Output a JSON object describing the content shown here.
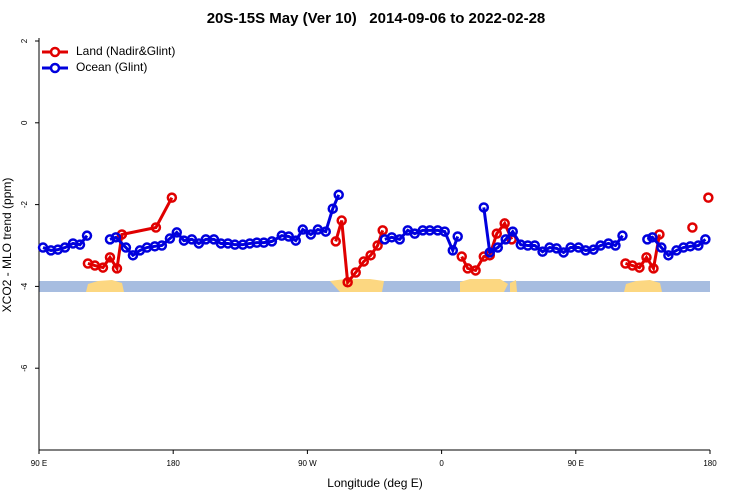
{
  "chart_data": {
    "type": "line",
    "title": "20S-15S May (Ver 10)   2014-09-06 to 2022-02-28",
    "xlabel": "Longitude (deg E)",
    "ylabel": "XCO2 - MLO trend (ppm)",
    "xlim": [
      90,
      540
    ],
    "xticks": [
      {
        "value": 90,
        "label": "90 E"
      },
      {
        "value": 180,
        "label": "180"
      },
      {
        "value": 270,
        "label": "90 W"
      },
      {
        "value": 360,
        "label": "0"
      },
      {
        "value": 450,
        "label": "90 E"
      },
      {
        "value": 540,
        "label": "180"
      }
    ],
    "ylim": [
      -8,
      2
    ],
    "yticks": [
      -6,
      -4,
      -2,
      0,
      2
    ],
    "legend": "top-left",
    "series": [
      {
        "name": "Land (Nadir&Glint)",
        "color": "#e00000",
        "x": [
          122.8,
          127.5,
          132.9,
          137.6,
          142.3,
          145.6,
          168.4,
          179.1,
          null,
          289.0,
          293.0,
          297.0,
          302.4,
          307.8,
          312.4,
          317.1,
          320.5,
          null,
          373.5,
          377.5,
          382.8,
          388.3,
          392.3,
          397.0,
          402.3,
          407.0,
          null,
          483.3,
          488.0,
          492.7,
          497.4,
          502.1,
          506.1,
          null,
          528.2,
          null,
          538.9
        ],
        "values": [
          -3.44,
          -3.49,
          -3.54,
          -3.29,
          -3.56,
          -2.73,
          -2.56,
          -1.83,
          null,
          -2.9,
          -2.39,
          -3.9,
          -3.66,
          -3.39,
          -3.24,
          -3.0,
          -2.63,
          null,
          -3.27,
          -3.56,
          -3.61,
          -3.27,
          -3.24,
          -2.71,
          -2.46,
          -2.85,
          null,
          -3.44,
          -3.49,
          -3.54,
          -3.29,
          -3.56,
          -2.73,
          null,
          -2.56,
          null,
          -1.83
        ]
      },
      {
        "name": "Ocean (Glint)",
        "color": "#0000dd",
        "x": [
          92.7,
          98.0,
          102.7,
          107.4,
          112.8,
          117.5,
          122.2,
          null,
          137.6,
          141.6,
          148.3,
          153.0,
          157.7,
          162.4,
          167.7,
          172.4,
          177.8,
          182.4,
          187.2,
          192.5,
          197.2,
          201.9,
          207.3,
          212.0,
          216.7,
          221.4,
          226.7,
          231.4,
          236.1,
          240.8,
          246.2,
          252.8,
          257.5,
          262.2,
          266.9,
          272.3,
          277.0,
          282.3,
          287.0,
          291.0,
          null,
          321.9,
          326.6,
          331.9,
          337.3,
          342.0,
          347.4,
          352.1,
          357.4,
          362.1,
          367.5,
          370.8,
          null,
          388.3,
          392.3,
          397.7,
          403.0,
          407.7,
          413.1,
          417.8,
          422.5,
          427.7,
          432.4,
          437.1,
          441.8,
          446.5,
          451.9,
          456.6,
          461.9,
          466.6,
          471.9,
          476.6,
          481.3,
          null,
          498.0,
          501.4,
          507.4,
          512.1,
          517.5,
          522.2,
          526.8,
          532.2,
          536.9
        ],
        "values": [
          -3.05,
          -3.12,
          -3.1,
          -3.05,
          -2.95,
          -2.98,
          -2.76,
          null,
          -2.85,
          -2.8,
          -3.05,
          -3.24,
          -3.12,
          -3.05,
          -3.02,
          -3.0,
          -2.83,
          -2.68,
          -2.88,
          -2.85,
          -2.95,
          -2.85,
          -2.85,
          -2.95,
          -2.95,
          -2.98,
          -2.98,
          -2.95,
          -2.93,
          -2.93,
          -2.9,
          -2.76,
          -2.78,
          -2.88,
          -2.61,
          -2.73,
          -2.61,
          -2.66,
          -2.1,
          -1.76,
          null,
          -2.85,
          -2.8,
          -2.85,
          -2.63,
          -2.71,
          -2.63,
          -2.63,
          -2.63,
          -2.66,
          -3.12,
          -2.78,
          null,
          -2.07,
          -3.17,
          -3.05,
          -2.85,
          -2.66,
          -2.98,
          -3.0,
          -3.0,
          -3.15,
          -3.05,
          -3.07,
          -3.17,
          -3.05,
          -3.05,
          -3.12,
          -3.1,
          -3.0,
          -2.95,
          -3.0,
          -2.76,
          null,
          -2.85,
          -2.8,
          -3.05,
          -3.24,
          -3.12,
          -3.05,
          -3.02,
          -3.0,
          -2.85
        ]
      }
    ]
  }
}
